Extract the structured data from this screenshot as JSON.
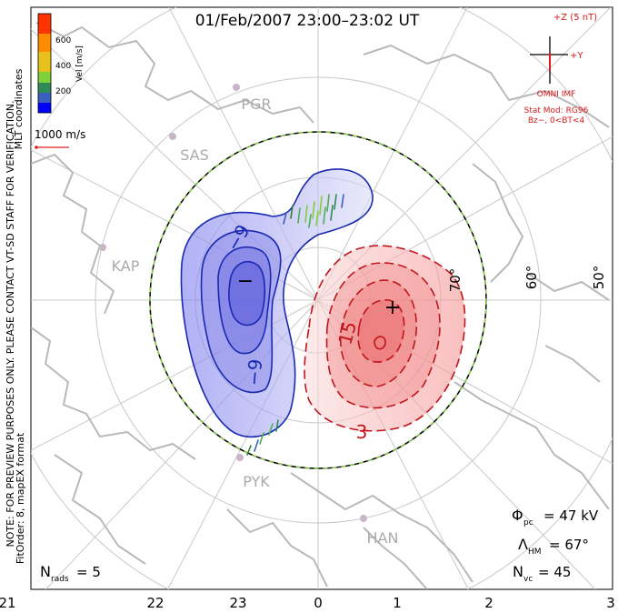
{
  "title": "01/Feb/2007 23:00–23:02 UT",
  "colorbar": {
    "label": "Vel [m/s]",
    "ticks": [
      "600",
      "400",
      "200"
    ],
    "colors": [
      "#0000ff",
      "#3a5fbf",
      "#2e8b57",
      "#7fd03a",
      "#e6c21a",
      "#ff8c00",
      "#ff3300"
    ]
  },
  "coords_label": "MLT coordinates",
  "vector_scale": "1000 m/s",
  "imf": {
    "bz_label": "+Z (5 nT)",
    "by_label": "+Y",
    "source": "OMNI IMF"
  },
  "model": {
    "line1": "Stat Mod: RG96",
    "line2": "Bz−, 0<BT<4"
  },
  "stations": [
    "PGR",
    "SAS",
    "KAP",
    "PYK",
    "HAN"
  ],
  "latitudes": [
    "70°",
    "60°",
    "50°"
  ],
  "contours": {
    "neg_a": "−9",
    "neg_b": "−9",
    "pos_a": "15",
    "pos_b": "3"
  },
  "extrema": {
    "min": "−",
    "max": "+"
  },
  "stats": {
    "phi_pc": "Φ",
    "phi_sub": "pc",
    "phi_val": "= 47 kV",
    "lam": "Λ",
    "lam_sub": "HM",
    "lam_val": "= 67°",
    "nvc": "N",
    "nvc_sub": "vc",
    "nvc_val": "= 45",
    "nrads": "N",
    "nrads_sub": "rads",
    "nrads_val": "= 5"
  },
  "side_note_1": "NOTE: FOR PREVIEW PURPOSES ONLY. PLEASE CONTACT VT-SD STAFF FOR VERIFICATION.",
  "side_note_2": "FitOrder: 8, mapEX format",
  "mlt_ticks": [
    "21",
    "22",
    "23",
    "0",
    "1",
    "2",
    "3"
  ]
}
